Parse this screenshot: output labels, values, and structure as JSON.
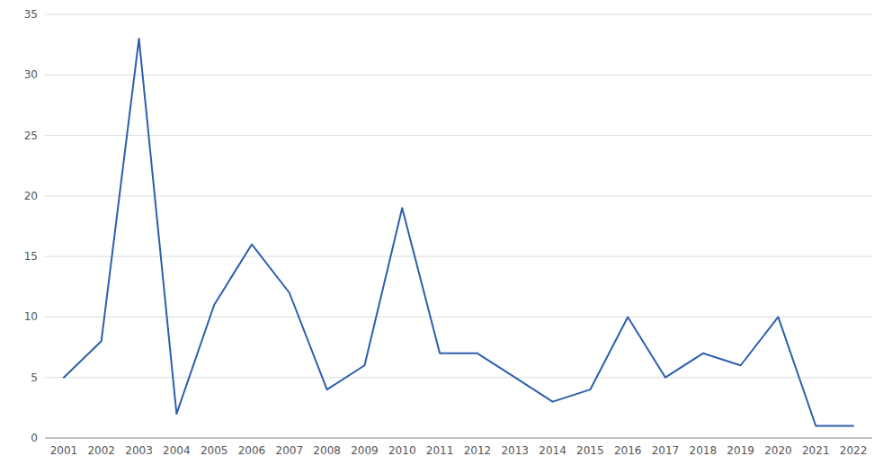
{
  "chart_data": {
    "type": "line",
    "x": [
      2001,
      2002,
      2003,
      2004,
      2005,
      2006,
      2007,
      2008,
      2009,
      2010,
      2011,
      2012,
      2013,
      2014,
      2015,
      2016,
      2017,
      2018,
      2019,
      2020,
      2021,
      2022
    ],
    "values": [
      5,
      8,
      33,
      2,
      11,
      16,
      12,
      4,
      6,
      19,
      7,
      7,
      5,
      3,
      4,
      10,
      5,
      7,
      6,
      10,
      1,
      1
    ],
    "color": "#2E5FAC",
    "xlim": [
      2000.5,
      2022.5
    ],
    "xticks": [
      2001,
      2002,
      2003,
      2004,
      2005,
      2006,
      2007,
      2008,
      2009,
      2010,
      2011,
      2012,
      2013,
      2014,
      2015,
      2016,
      2017,
      2018,
      2019,
      2020,
      2021,
      2022
    ],
    "ylim": [
      0,
      35
    ],
    "yticks": [
      0,
      5,
      10,
      15,
      20,
      25,
      30,
      35
    ],
    "grid": true
  }
}
